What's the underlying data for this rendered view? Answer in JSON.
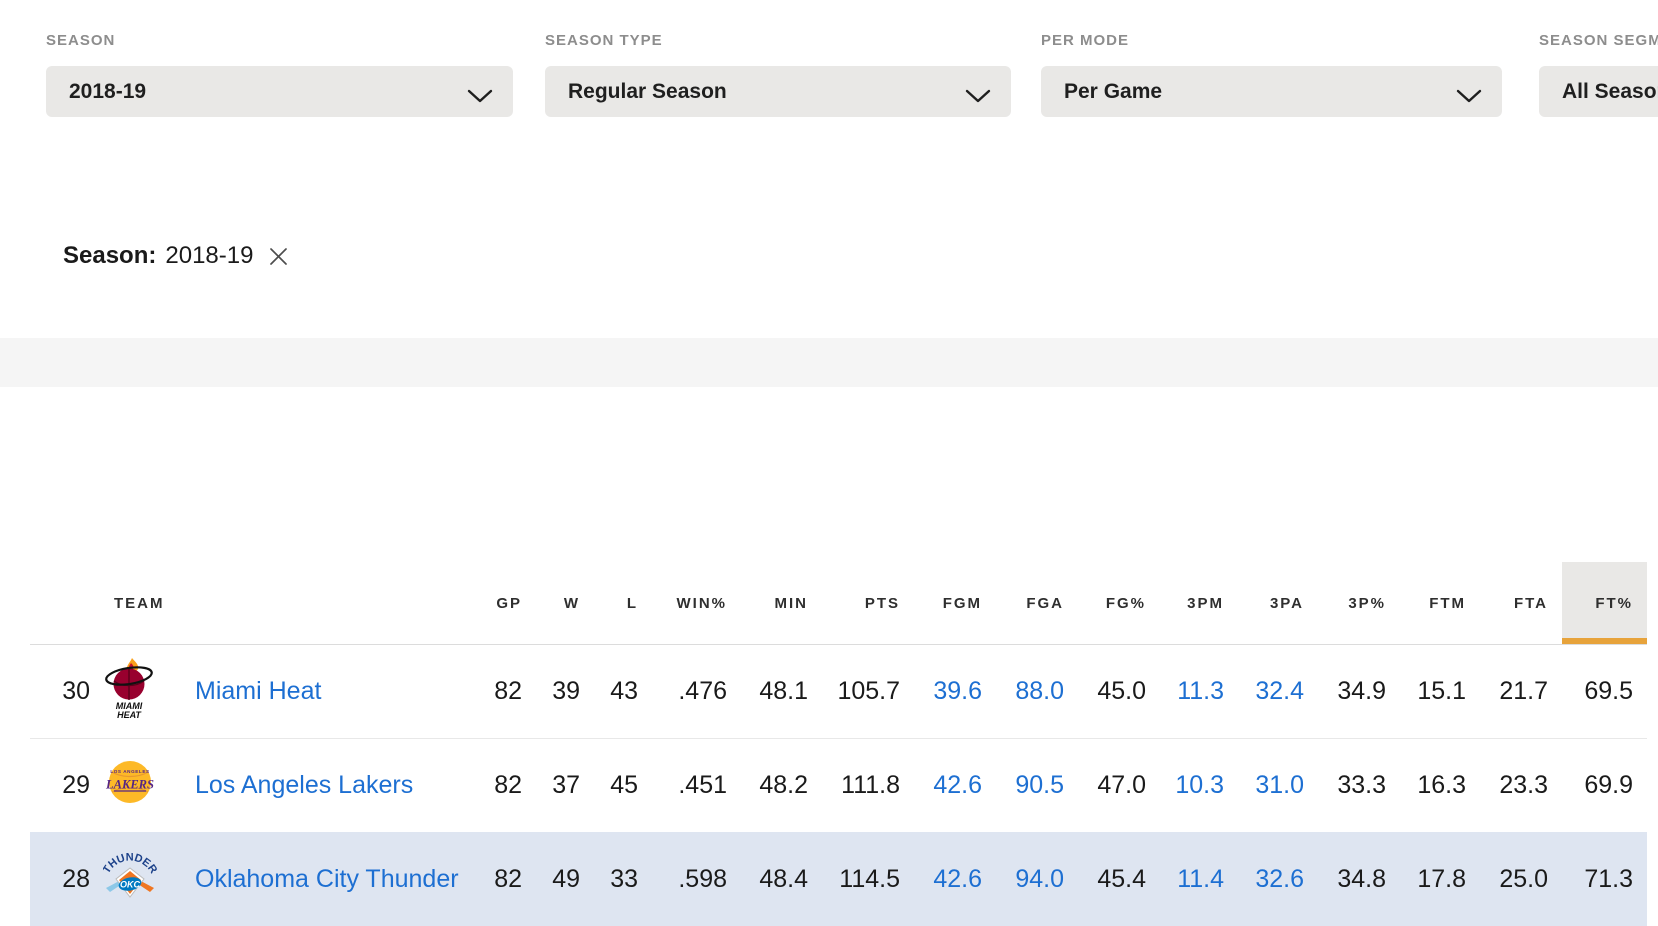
{
  "filters": {
    "groups": [
      {
        "label": "SEASON",
        "value": "2018-19"
      },
      {
        "label": "SEASON TYPE",
        "value": "Regular Season"
      },
      {
        "label": "PER MODE",
        "value": "Per Game"
      },
      {
        "label": "SEASON SEGMENT",
        "value": "All Seasons"
      }
    ]
  },
  "applied_filter": {
    "label": "Season:",
    "value": "2018-19"
  },
  "table": {
    "sorted_column": "FT%",
    "columns": [
      {
        "label": "TEAM",
        "blue": false,
        "sorted": false
      },
      {
        "label": "GP",
        "blue": false,
        "sorted": false
      },
      {
        "label": "W",
        "blue": false,
        "sorted": false
      },
      {
        "label": "L",
        "blue": false,
        "sorted": false
      },
      {
        "label": "WIN%",
        "blue": false,
        "sorted": false
      },
      {
        "label": "MIN",
        "blue": false,
        "sorted": false
      },
      {
        "label": "PTS",
        "blue": false,
        "sorted": false
      },
      {
        "label": "FGM",
        "blue": true,
        "sorted": false
      },
      {
        "label": "FGA",
        "blue": true,
        "sorted": false
      },
      {
        "label": "FG%",
        "blue": false,
        "sorted": false
      },
      {
        "label": "3PM",
        "blue": true,
        "sorted": false
      },
      {
        "label": "3PA",
        "blue": true,
        "sorted": false
      },
      {
        "label": "3P%",
        "blue": false,
        "sorted": false
      },
      {
        "label": "FTM",
        "blue": false,
        "sorted": false
      },
      {
        "label": "FTA",
        "blue": false,
        "sorted": false
      },
      {
        "label": "FT%",
        "blue": false,
        "sorted": true
      }
    ],
    "rows": [
      {
        "rank": "30",
        "team": "Miami Heat",
        "logo": "heat",
        "highlighted": false,
        "values": [
          "82",
          "39",
          "43",
          ".476",
          "48.1",
          "105.7",
          "39.6",
          "88.0",
          "45.0",
          "11.3",
          "32.4",
          "34.9",
          "15.1",
          "21.7",
          "69.5"
        ]
      },
      {
        "rank": "29",
        "team": "Los Angeles Lakers",
        "logo": "lakers",
        "highlighted": false,
        "values": [
          "82",
          "37",
          "45",
          ".451",
          "48.2",
          "111.8",
          "42.6",
          "90.5",
          "47.0",
          "10.3",
          "31.0",
          "33.3",
          "16.3",
          "23.3",
          "69.9"
        ]
      },
      {
        "rank": "28",
        "team": "Oklahoma City Thunder",
        "logo": "thunder",
        "highlighted": true,
        "values": [
          "82",
          "49",
          "33",
          ".598",
          "48.4",
          "114.5",
          "42.6",
          "94.0",
          "45.4",
          "11.4",
          "32.6",
          "34.8",
          "17.8",
          "25.0",
          "71.3"
        ]
      }
    ]
  },
  "colors": {
    "sort_accent": "#e7a33b",
    "link_blue": "#1d6fd2",
    "row_highlight": "#dee5f1",
    "control_bg": "#e9e8e6",
    "band_bg": "#f5f5f5"
  }
}
